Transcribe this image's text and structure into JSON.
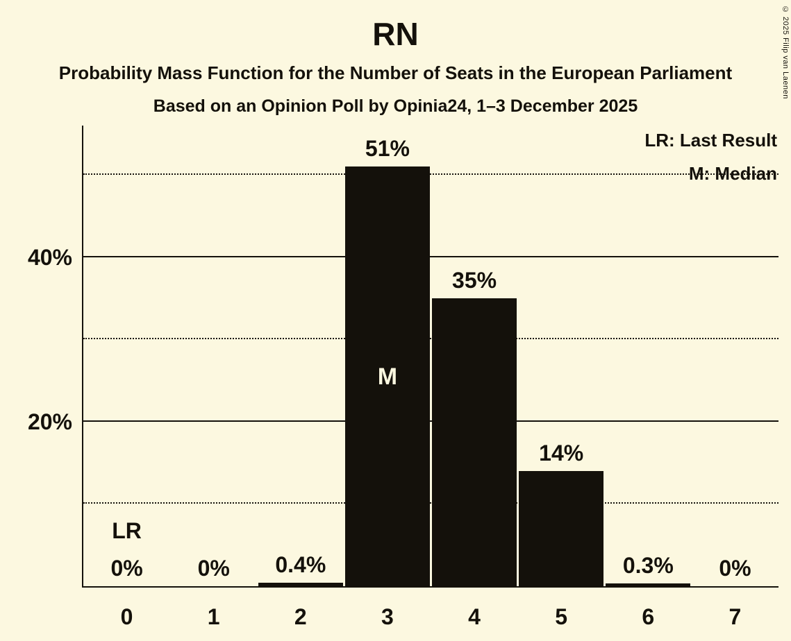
{
  "title": "RN",
  "subtitle1": "Probability Mass Function for the Number of Seats in the European Parliament",
  "subtitle2": "Based on an Opinion Poll by Opinia24, 1–3 December 2025",
  "copyright": "© 2025 Filip van Laenen",
  "legend": {
    "lr": "LR: Last Result",
    "m": "M: Median"
  },
  "colors": {
    "background": "#FCF8E0",
    "bar": "#14110B",
    "text": "#14110B",
    "inside_bar_label": "#FCF8E0"
  },
  "chart_data": {
    "type": "bar",
    "title": "RN",
    "xlabel": "",
    "ylabel": "",
    "categories": [
      "0",
      "1",
      "2",
      "3",
      "4",
      "5",
      "6",
      "7"
    ],
    "values": [
      0,
      0,
      0.4,
      51,
      35,
      14,
      0.3,
      0
    ],
    "value_labels": [
      "0%",
      "0%",
      "0.4%",
      "51%",
      "35%",
      "14%",
      "0.3%",
      "0%"
    ],
    "ylim": [
      0,
      56
    ],
    "grid": "horizontal",
    "solid_gridlines": [
      20,
      40
    ],
    "dotted_gridlines": [
      10,
      30,
      50
    ],
    "ytick_labels": [
      {
        "value": 20,
        "label": "20%"
      },
      {
        "value": 40,
        "label": "40%"
      }
    ],
    "legend_position": "top-right",
    "annotations": [
      {
        "category_index": 0,
        "text": "LR",
        "meaning": "last-result",
        "position": "above-value-label"
      },
      {
        "category_index": 3,
        "text": "M",
        "meaning": "median",
        "position": "inside-bar"
      }
    ]
  }
}
